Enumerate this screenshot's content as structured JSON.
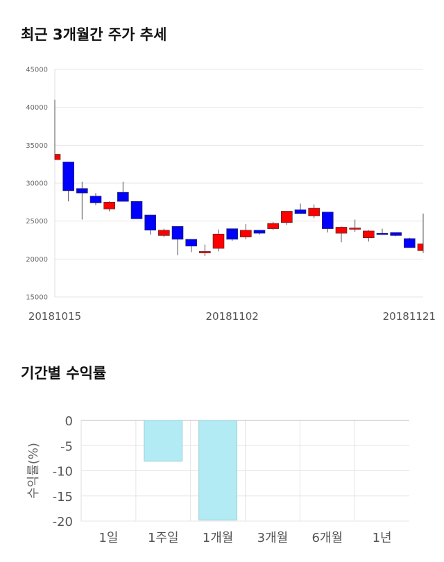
{
  "sections": {
    "price_title": "최근 3개월간 주가 추세",
    "returns_title": "기간별 수익률"
  },
  "colors": {
    "up": "#ff0000",
    "down": "#0000ff",
    "bar_fill": "#b2ebf4",
    "grid": "#e5e5e5"
  },
  "chart_data": [
    {
      "type": "candlestick",
      "title": "최근 3개월간 주가 추세",
      "ylim": [
        15000,
        45000
      ],
      "yticks": [
        15000,
        20000,
        25000,
        30000,
        35000,
        40000,
        45000
      ],
      "xtick_labels": [
        {
          "index": 0,
          "label": "20181015"
        },
        {
          "index": 13,
          "label": "20181102"
        },
        {
          "index": 27,
          "label": "20181121"
        }
      ],
      "candles": [
        {
          "o": 33100,
          "h": 41000,
          "l": 33100,
          "c": 33800
        },
        {
          "o": 32800,
          "h": 32800,
          "l": 27600,
          "c": 29000
        },
        {
          "o": 29300,
          "h": 30200,
          "l": 25200,
          "c": 28700
        },
        {
          "o": 28300,
          "h": 28700,
          "l": 27100,
          "c": 27400
        },
        {
          "o": 26600,
          "h": 27600,
          "l": 26300,
          "c": 27500
        },
        {
          "o": 28800,
          "h": 30200,
          "l": 27600,
          "c": 27600
        },
        {
          "o": 27600,
          "h": 27600,
          "l": 25300,
          "c": 25300
        },
        {
          "o": 25800,
          "h": 25800,
          "l": 23200,
          "c": 23800
        },
        {
          "o": 23100,
          "h": 24000,
          "l": 22900,
          "c": 23800
        },
        {
          "o": 24300,
          "h": 24300,
          "l": 20500,
          "c": 22600
        },
        {
          "o": 22600,
          "h": 22600,
          "l": 20900,
          "c": 21700
        },
        {
          "o": 20800,
          "h": 21900,
          "l": 20400,
          "c": 21000
        },
        {
          "o": 21400,
          "h": 23900,
          "l": 21000,
          "c": 23300
        },
        {
          "o": 24000,
          "h": 24000,
          "l": 22400,
          "c": 22600
        },
        {
          "o": 22900,
          "h": 24600,
          "l": 22600,
          "c": 23800
        },
        {
          "o": 23800,
          "h": 23800,
          "l": 23200,
          "c": 23400
        },
        {
          "o": 24000,
          "h": 24900,
          "l": 23800,
          "c": 24700
        },
        {
          "o": 24800,
          "h": 26300,
          "l": 24500,
          "c": 26300
        },
        {
          "o": 26500,
          "h": 27300,
          "l": 26000,
          "c": 26000
        },
        {
          "o": 25700,
          "h": 27200,
          "l": 25400,
          "c": 26700
        },
        {
          "o": 26200,
          "h": 26200,
          "l": 23500,
          "c": 24000
        },
        {
          "o": 23400,
          "h": 24300,
          "l": 22200,
          "c": 24200
        },
        {
          "o": 24000,
          "h": 25200,
          "l": 23600,
          "c": 24100
        },
        {
          "o": 22800,
          "h": 23800,
          "l": 22300,
          "c": 23700
        },
        {
          "o": 23400,
          "h": 24000,
          "l": 23200,
          "c": 23300
        },
        {
          "o": 23500,
          "h": 23500,
          "l": 23000,
          "c": 23100
        },
        {
          "o": 22700,
          "h": 22800,
          "l": 21500,
          "c": 21500
        },
        {
          "o": 21100,
          "h": 26000,
          "l": 20800,
          "c": 22000
        }
      ]
    },
    {
      "type": "bar",
      "title": "기간별 수익률",
      "ylabel": "수익률(%)",
      "ylim": [
        -20,
        0
      ],
      "yticks": [
        0,
        -5,
        -10,
        -15,
        -20
      ],
      "categories": [
        "1일",
        "1주일",
        "1개월",
        "3개월",
        "6개월",
        "1년"
      ],
      "values": [
        null,
        -8.1,
        -19.8,
        null,
        null,
        null
      ]
    }
  ]
}
